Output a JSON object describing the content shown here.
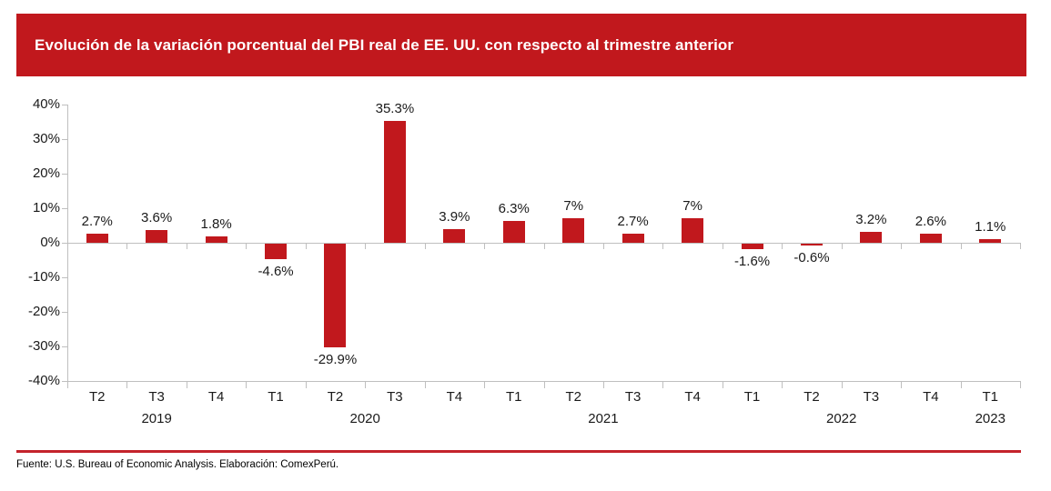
{
  "header": {
    "title": "Evolución de la variación porcentual del PBI real de EE. UU. con respecto al trimestre anterior",
    "banner_color": "#C1181D",
    "title_text_color": "#FFFFFF"
  },
  "footer": {
    "source": "Fuente: U.S. Bureau of Economic Analysis. Elaboración: ComexPerú.",
    "divider_color": "#C4232B"
  },
  "chart_data": {
    "type": "bar",
    "title": "Evolución de la variación porcentual del PBI real de EE. UU. con respecto al trimestre anterior",
    "quarters": [
      "T2",
      "T3",
      "T4",
      "T1",
      "T2",
      "T3",
      "T4",
      "T1",
      "T2",
      "T3",
      "T4",
      "T1",
      "T2",
      "T3",
      "T4",
      "T1"
    ],
    "year_groups": [
      {
        "label": "2019",
        "quarters": 3
      },
      {
        "label": "2020",
        "quarters": 4
      },
      {
        "label": "2021",
        "quarters": 4
      },
      {
        "label": "2022",
        "quarters": 4
      },
      {
        "label": "2023",
        "quarters": 1
      }
    ],
    "values": [
      2.7,
      3.6,
      1.8,
      -4.6,
      -29.9,
      35.3,
      3.9,
      6.3,
      7,
      2.7,
      7,
      -1.6,
      -0.6,
      3.2,
      2.6,
      1.1
    ],
    "value_labels": [
      "2.7%",
      "3.6%",
      "1.8%",
      "-4.6%",
      "-29.9%",
      "35.3%",
      "3.9%",
      "6.3%",
      "7%",
      "2.7%",
      "7%",
      "-1.6%",
      "-0.6%",
      "3.2%",
      "2.6%",
      "1.1%"
    ],
    "xlabel": "",
    "ylabel": "",
    "ylim": [
      -40,
      40
    ],
    "ytick_step": 10,
    "ytick_labels": [
      "40%",
      "30%",
      "20%",
      "10%",
      "0%",
      "-10%",
      "-20%",
      "-30%",
      "-40%"
    ],
    "bar_color": "#C1181D",
    "axis_color": "#BFBFBF",
    "label_color": "#1A1A1A",
    "grid": false,
    "legend": false,
    "data_labels": "outside-end"
  }
}
